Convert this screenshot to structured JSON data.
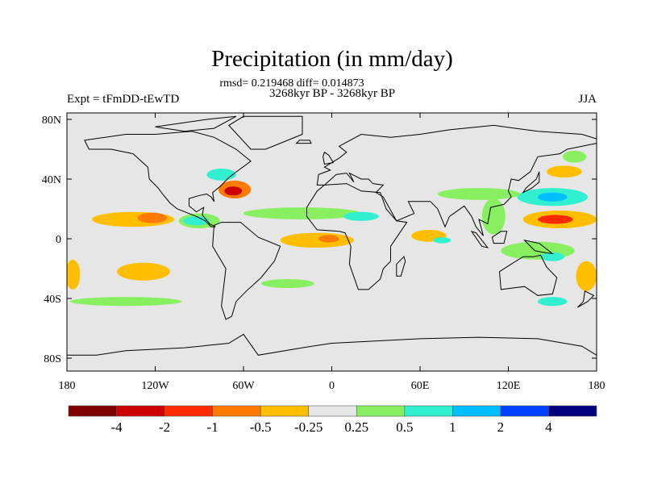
{
  "chart_data": {
    "type": "heatmap",
    "title": "Precipitation (in mm/day)",
    "subtitle": "rmsd= 0.219468 diff= 0.014873",
    "center_string": "3268kyr BP - 3268kyr BP",
    "left_string": "Expt = tFmDD-tEwTD",
    "right_string": "JJA",
    "xlim": [
      -180,
      180
    ],
    "ylim": [
      -88,
      84
    ],
    "x_ticks": [
      {
        "value": -180,
        "label": "180"
      },
      {
        "value": -120,
        "label": "120W"
      },
      {
        "value": -60,
        "label": "60W"
      },
      {
        "value": 0,
        "label": "0"
      },
      {
        "value": 60,
        "label": "60E"
      },
      {
        "value": 120,
        "label": "120E"
      },
      {
        "value": 180,
        "label": "180"
      }
    ],
    "y_ticks": [
      {
        "value": 80,
        "label": "80N"
      },
      {
        "value": 40,
        "label": "40N"
      },
      {
        "value": 0,
        "label": "0"
      },
      {
        "value": -40,
        "label": "40S"
      },
      {
        "value": -80,
        "label": "80S"
      }
    ],
    "colorbar": {
      "colors": [
        "#7f0000",
        "#cc0000",
        "#ff2a00",
        "#ff7a00",
        "#ffbf00",
        "#e6e6e6",
        "#88f060",
        "#30f0d0",
        "#00bfff",
        "#0040ff",
        "#00007f"
      ],
      "labels": [
        "-4",
        "-2",
        "-1",
        "-0.5",
        "-0.25",
        "0.25",
        "0.5",
        "1",
        "2",
        "4"
      ]
    },
    "anomalies": [
      {
        "lon": -135,
        "lat": 13,
        "dlon": 28,
        "dlat": 5,
        "level": 4
      },
      {
        "lon": -122,
        "lat": 14,
        "dlon": 10,
        "dlat": 3.5,
        "level": 3
      },
      {
        "lon": -90,
        "lat": 12,
        "dlon": 14,
        "dlat": 5,
        "level": 6
      },
      {
        "lon": -92,
        "lat": 12,
        "dlon": 9,
        "dlat": 3,
        "level": 7
      },
      {
        "lon": -66,
        "lat": 33,
        "dlon": 11,
        "dlat": 6,
        "level": 3
      },
      {
        "lon": -67,
        "lat": 32,
        "dlon": 6,
        "dlat": 3,
        "level": 1
      },
      {
        "lon": -75,
        "lat": 43,
        "dlon": 10,
        "dlat": 4,
        "level": 7
      },
      {
        "lon": -20,
        "lat": 17,
        "dlon": 40,
        "dlat": 4,
        "level": 6
      },
      {
        "lon": 20,
        "lat": 15,
        "dlon": 12,
        "dlat": 3,
        "level": 7
      },
      {
        "lon": -10,
        "lat": -1,
        "dlon": 25,
        "dlat": 5,
        "level": 4
      },
      {
        "lon": -2,
        "lat": 0,
        "dlon": 7,
        "dlat": 2.5,
        "level": 3
      },
      {
        "lon": 66,
        "lat": 2,
        "dlon": 12,
        "dlat": 4,
        "level": 4
      },
      {
        "lon": 75,
        "lat": -1,
        "dlon": 6,
        "dlat": 2,
        "level": 7
      },
      {
        "lon": 155,
        "lat": 13,
        "dlon": 25,
        "dlat": 6,
        "level": 4
      },
      {
        "lon": 152,
        "lat": 13,
        "dlon": 12,
        "dlat": 3,
        "level": 2
      },
      {
        "lon": 158,
        "lat": 45,
        "dlon": 12,
        "dlat": 4,
        "level": 4
      },
      {
        "lon": 150,
        "lat": 28,
        "dlon": 24,
        "dlat": 6,
        "level": 7
      },
      {
        "lon": 150,
        "lat": 28,
        "dlon": 10,
        "dlat": 3,
        "level": 8
      },
      {
        "lon": 100,
        "lat": 30,
        "dlon": 28,
        "dlat": 4,
        "level": 6
      },
      {
        "lon": 110,
        "lat": 15,
        "dlon": 8,
        "dlat": 12,
        "level": 6
      },
      {
        "lon": -128,
        "lat": -22,
        "dlon": 18,
        "dlat": 6,
        "level": 4
      },
      {
        "lon": -176,
        "lat": -24,
        "dlon": 5,
        "dlat": 10,
        "level": 4
      },
      {
        "lon": -140,
        "lat": -42,
        "dlon": 38,
        "dlat": 3,
        "level": 6
      },
      {
        "lon": -30,
        "lat": -30,
        "dlon": 18,
        "dlat": 3,
        "level": 6
      },
      {
        "lon": 140,
        "lat": -8,
        "dlon": 25,
        "dlat": 6,
        "level": 6
      },
      {
        "lon": 150,
        "lat": -12,
        "dlon": 8,
        "dlat": 3,
        "level": 7
      },
      {
        "lon": 173,
        "lat": -25,
        "dlon": 7,
        "dlat": 10,
        "level": 4
      },
      {
        "lon": 150,
        "lat": -42,
        "dlon": 10,
        "dlat": 3,
        "level": 7
      },
      {
        "lon": 165,
        "lat": 55,
        "dlon": 8,
        "dlat": 4,
        "level": 6
      }
    ]
  }
}
